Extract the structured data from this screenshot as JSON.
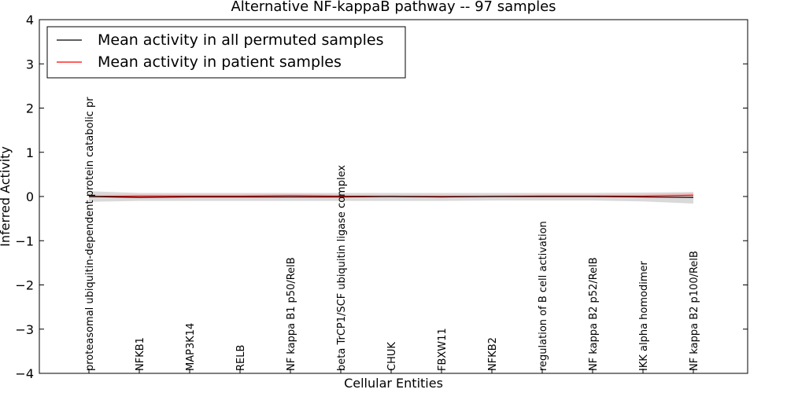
{
  "chart_data": {
    "type": "line",
    "title": "Alternative NF-kappaB pathway -- 97 samples",
    "xlabel": "Cellular Entities",
    "ylabel": "Inferred Activity",
    "ylim": [
      -4,
      4
    ],
    "yticks": [
      -4,
      -3,
      -2,
      -1,
      0,
      1,
      2,
      3,
      4
    ],
    "ytick_labels": [
      "−4",
      "−3",
      "−2",
      "−1",
      "0",
      "1",
      "2",
      "3",
      "4"
    ],
    "legend": {
      "placement": "top-left"
    },
    "categories": [
      "proteasomal ubiquitin-dependent protein catabolic pr",
      "NFKB1",
      "MAP3K14",
      "RELB",
      "NF kappa B1 p50/RelB",
      "beta TrCP1/SCF ubiquitin ligase complex",
      "CHUK",
      "FBXW11",
      "NFKB2",
      "regulation of B cell activation",
      "NF kappa B2 p52/RelB",
      "IKK alpha homodimer",
      "NF kappa B2 p100/RelB"
    ],
    "series": [
      {
        "name": "Mean activity in all permuted samples",
        "color": "#000000",
        "values": [
          0.0,
          -0.02,
          -0.01,
          -0.01,
          -0.01,
          -0.01,
          0.0,
          -0.01,
          0.0,
          0.0,
          0.0,
          -0.01,
          -0.02
        ],
        "band": {
          "color": "#d0d0d0",
          "lower": [
            -0.12,
            -0.1,
            -0.1,
            -0.1,
            -0.1,
            -0.1,
            -0.1,
            -0.1,
            -0.09,
            -0.09,
            -0.09,
            -0.11,
            -0.16
          ],
          "upper": [
            0.12,
            0.08,
            0.08,
            0.08,
            0.08,
            0.08,
            0.08,
            0.08,
            0.08,
            0.08,
            0.08,
            0.09,
            0.1
          ]
        }
      },
      {
        "name": "Mean activity in patient samples",
        "color": "#ff0000",
        "values": [
          0.0,
          0.01,
          0.01,
          0.01,
          0.02,
          0.01,
          0.0,
          0.0,
          0.0,
          0.01,
          0.01,
          0.01,
          0.03
        ],
        "band": {
          "color": "#f3b8b8",
          "lower": [
            -0.03,
            -0.02,
            -0.02,
            -0.02,
            -0.02,
            -0.02,
            -0.02,
            -0.02,
            -0.02,
            -0.02,
            -0.02,
            -0.02,
            -0.02
          ],
          "upper": [
            0.04,
            0.05,
            0.05,
            0.05,
            0.05,
            0.04,
            0.04,
            0.04,
            0.04,
            0.05,
            0.05,
            0.05,
            0.08
          ]
        }
      }
    ]
  }
}
